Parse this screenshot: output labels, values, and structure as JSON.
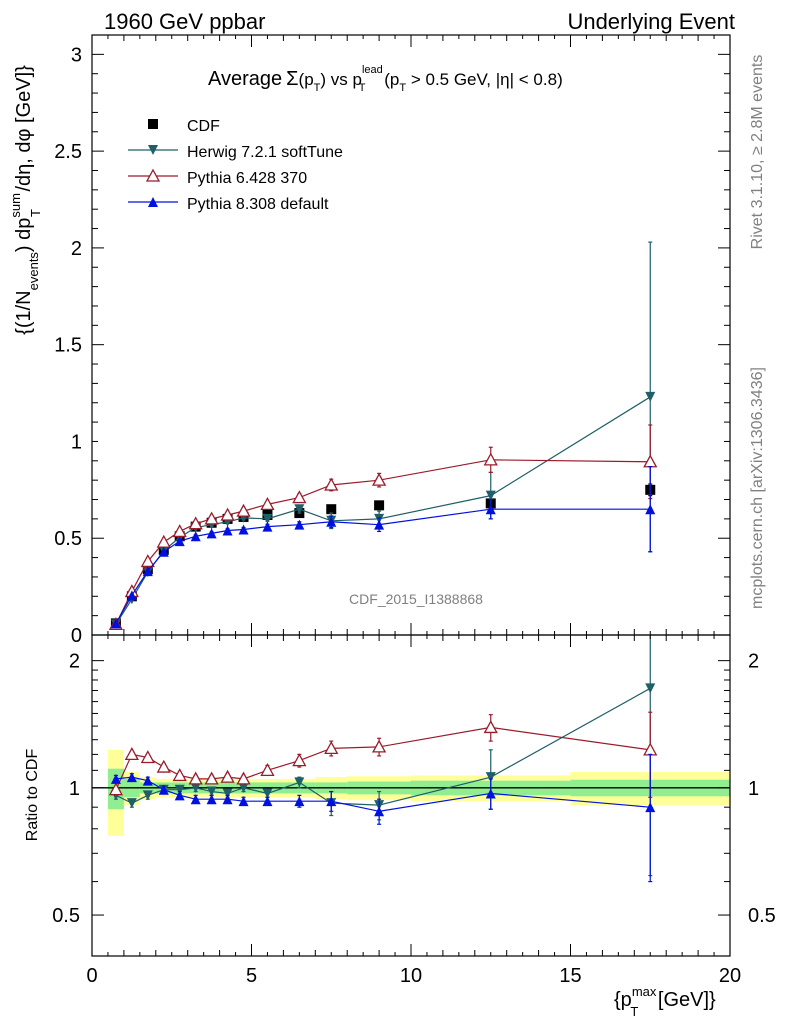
{
  "header": {
    "left": "1960 GeV ppbar",
    "right": "Underlying Event"
  },
  "side_text": {
    "rivet": "Rivet 3.1.10, ≥ 2.8M events",
    "mcplots": "mcplots.cern.ch [arXiv:1306.3436]"
  },
  "colors": {
    "cdf": "#000000",
    "herwig": "#1f5f67",
    "pythia6": "#9b1b2b",
    "pythia8": "#0010e0",
    "band_inner": "#90ee90",
    "band_outer": "#ffff99"
  },
  "chart_data": [
    {
      "type": "scatter",
      "panel": "main",
      "title_parts": {
        "average": "Average",
        "sigma": "Σ",
        "open": "(",
        "p": "p",
        "sub_T": "T",
        "close": ")",
        "vs": " vs ",
        "sup_lead": "lead",
        "cut_open": " (",
        "cut_mid": " > 0.5 GeV, |",
        "eta": "η",
        "cut_end": "| < 0.8)"
      },
      "ylabel_parts": {
        "open": "{(1/N",
        "sub_events": "events",
        "mid": ") dp",
        "sup_sum": "sum",
        "sub_T": "T",
        "tail": " /dη, dφ [GeV]}"
      },
      "watermark": "CDF_2015_I1388868",
      "xlim": [
        0,
        20
      ],
      "ylim": [
        0,
        3.1
      ],
      "yticks": [
        0,
        0.5,
        1,
        1.5,
        2,
        2.5,
        3
      ],
      "ytick_labels": [
        "0",
        "0.5",
        "1",
        "1.5",
        "2",
        "2.5",
        "3"
      ],
      "legend_position": "top-left",
      "series": [
        {
          "name": "CDF",
          "key": "cdf",
          "marker": "square",
          "line": false,
          "x": [
            0.75,
            1.25,
            1.75,
            2.25,
            2.75,
            3.25,
            3.75,
            4.25,
            4.75,
            5.5,
            6.5,
            7.5,
            9.0,
            12.5,
            17.5
          ],
          "y": [
            0.06,
            0.2,
            0.34,
            0.44,
            0.51,
            0.56,
            0.58,
            0.6,
            0.61,
            0.62,
            0.63,
            0.65,
            0.67,
            0.68,
            0.75
          ],
          "err": [
            0.005,
            0.005,
            0.005,
            0.005,
            0.005,
            0.005,
            0.005,
            0.005,
            0.005,
            0.01,
            0.01,
            0.01,
            0.01,
            0.02,
            0.03
          ]
        },
        {
          "name": "Herwig 7.2.1 softTune",
          "key": "herwig",
          "marker": "triangle-down",
          "line": true,
          "x": [
            0.75,
            1.25,
            1.75,
            2.25,
            2.75,
            3.25,
            3.75,
            4.25,
            4.75,
            5.5,
            6.5,
            7.5,
            9.0,
            12.5,
            17.5
          ],
          "y": [
            0.055,
            0.185,
            0.325,
            0.435,
            0.505,
            0.555,
            0.57,
            0.585,
            0.605,
            0.6,
            0.65,
            0.59,
            0.6,
            0.72,
            1.23
          ],
          "err": [
            0.003,
            0.004,
            0.005,
            0.006,
            0.006,
            0.007,
            0.008,
            0.009,
            0.01,
            0.012,
            0.02,
            0.04,
            0.04,
            0.12,
            0.8
          ]
        },
        {
          "name": "Pythia 6.428 370",
          "key": "pythia6",
          "marker": "triangle-up-open",
          "line": true,
          "x": [
            0.75,
            1.25,
            1.75,
            2.25,
            2.75,
            3.25,
            3.75,
            4.25,
            4.75,
            5.5,
            6.5,
            7.5,
            9.0,
            12.5,
            17.5
          ],
          "y": [
            0.055,
            0.225,
            0.38,
            0.48,
            0.535,
            0.575,
            0.6,
            0.62,
            0.64,
            0.675,
            0.71,
            0.775,
            0.8,
            0.905,
            0.895
          ],
          "err": [
            0.003,
            0.004,
            0.005,
            0.006,
            0.007,
            0.008,
            0.009,
            0.01,
            0.012,
            0.015,
            0.02,
            0.03,
            0.035,
            0.065,
            0.19
          ]
        },
        {
          "name": "Pythia 8.308 default",
          "key": "pythia8",
          "marker": "triangle-up",
          "line": true,
          "x": [
            0.75,
            1.25,
            1.75,
            2.25,
            2.75,
            3.25,
            3.75,
            4.25,
            4.75,
            5.5,
            6.5,
            7.5,
            9.0,
            12.5,
            17.5
          ],
          "y": [
            0.06,
            0.205,
            0.33,
            0.43,
            0.485,
            0.51,
            0.525,
            0.54,
            0.545,
            0.56,
            0.57,
            0.585,
            0.57,
            0.65,
            0.65
          ],
          "err": [
            0.003,
            0.004,
            0.005,
            0.006,
            0.006,
            0.007,
            0.008,
            0.009,
            0.01,
            0.012,
            0.015,
            0.03,
            0.035,
            0.05,
            0.22
          ]
        }
      ]
    },
    {
      "type": "scatter",
      "panel": "ratio",
      "ylabel": "Ratio to CDF",
      "xlim": [
        0,
        20
      ],
      "ylim": [
        0.4,
        2.3
      ],
      "xticks": [
        0,
        5,
        10,
        15,
        20
      ],
      "xtick_labels": [
        "0",
        "5",
        "10",
        "15",
        "20"
      ],
      "xlabel_parts": {
        "open": "{p",
        "sup_max": "max",
        "sub_T": "T",
        "tail": " [GeV]}"
      },
      "yticks": [
        0.5,
        1,
        2
      ],
      "ytick_labels": [
        "0.5",
        "1",
        "2"
      ],
      "bands": {
        "edges": [
          0.5,
          1.0,
          1.5,
          2.0,
          2.5,
          3.0,
          3.5,
          4.0,
          4.5,
          5.0,
          6.0,
          7.0,
          8.0,
          10.0,
          15.0,
          20.0
        ],
        "inner": [
          0.11,
          0.05,
          0.03,
          0.03,
          0.03,
          0.03,
          0.03,
          0.03,
          0.03,
          0.03,
          0.03,
          0.03,
          0.035,
          0.04,
          0.045
        ],
        "outer": [
          0.23,
          0.09,
          0.06,
          0.05,
          0.05,
          0.05,
          0.05,
          0.05,
          0.05,
          0.05,
          0.05,
          0.06,
          0.065,
          0.07,
          0.09
        ]
      },
      "series": [
        {
          "name": "Herwig 7.2.1 softTune",
          "key": "herwig",
          "marker": "triangle-down",
          "x": [
            0.75,
            1.25,
            1.75,
            2.25,
            2.75,
            3.25,
            3.75,
            4.25,
            4.75,
            5.5,
            6.5,
            7.5,
            9.0,
            12.5,
            17.5
          ],
          "y": [
            0.96,
            0.92,
            0.96,
            0.99,
            0.99,
            1.0,
            0.98,
            0.97,
            1.0,
            0.97,
            1.03,
            0.92,
            0.91,
            1.06,
            1.72
          ],
          "err": [
            0.02,
            0.02,
            0.02,
            0.02,
            0.02,
            0.02,
            0.02,
            0.02,
            0.02,
            0.02,
            0.03,
            0.06,
            0.07,
            0.17,
            1.1
          ]
        },
        {
          "name": "Pythia 6.428 370",
          "key": "pythia6",
          "marker": "triangle-up-open",
          "x": [
            0.75,
            1.25,
            1.75,
            2.25,
            2.75,
            3.25,
            3.75,
            4.25,
            4.75,
            5.5,
            6.5,
            7.5,
            9.0,
            12.5,
            17.5
          ],
          "y": [
            0.99,
            1.2,
            1.18,
            1.12,
            1.07,
            1.05,
            1.05,
            1.06,
            1.05,
            1.1,
            1.16,
            1.24,
            1.25,
            1.39,
            1.23
          ],
          "err": [
            0.02,
            0.02,
            0.02,
            0.02,
            0.02,
            0.02,
            0.02,
            0.02,
            0.02,
            0.03,
            0.04,
            0.05,
            0.06,
            0.1,
            0.28
          ]
        },
        {
          "name": "Pythia 8.308 default",
          "key": "pythia8",
          "marker": "triangle-up",
          "x": [
            0.75,
            1.25,
            1.75,
            2.25,
            2.75,
            3.25,
            3.75,
            4.25,
            4.75,
            5.5,
            6.5,
            7.5,
            9.0,
            12.5,
            17.5
          ],
          "y": [
            1.05,
            1.06,
            1.04,
            0.99,
            0.96,
            0.94,
            0.94,
            0.94,
            0.93,
            0.93,
            0.93,
            0.93,
            0.88,
            0.97,
            0.9
          ],
          "err": [
            0.02,
            0.02,
            0.02,
            0.02,
            0.02,
            0.02,
            0.02,
            0.02,
            0.02,
            0.02,
            0.03,
            0.05,
            0.06,
            0.08,
            0.3
          ]
        }
      ]
    }
  ]
}
